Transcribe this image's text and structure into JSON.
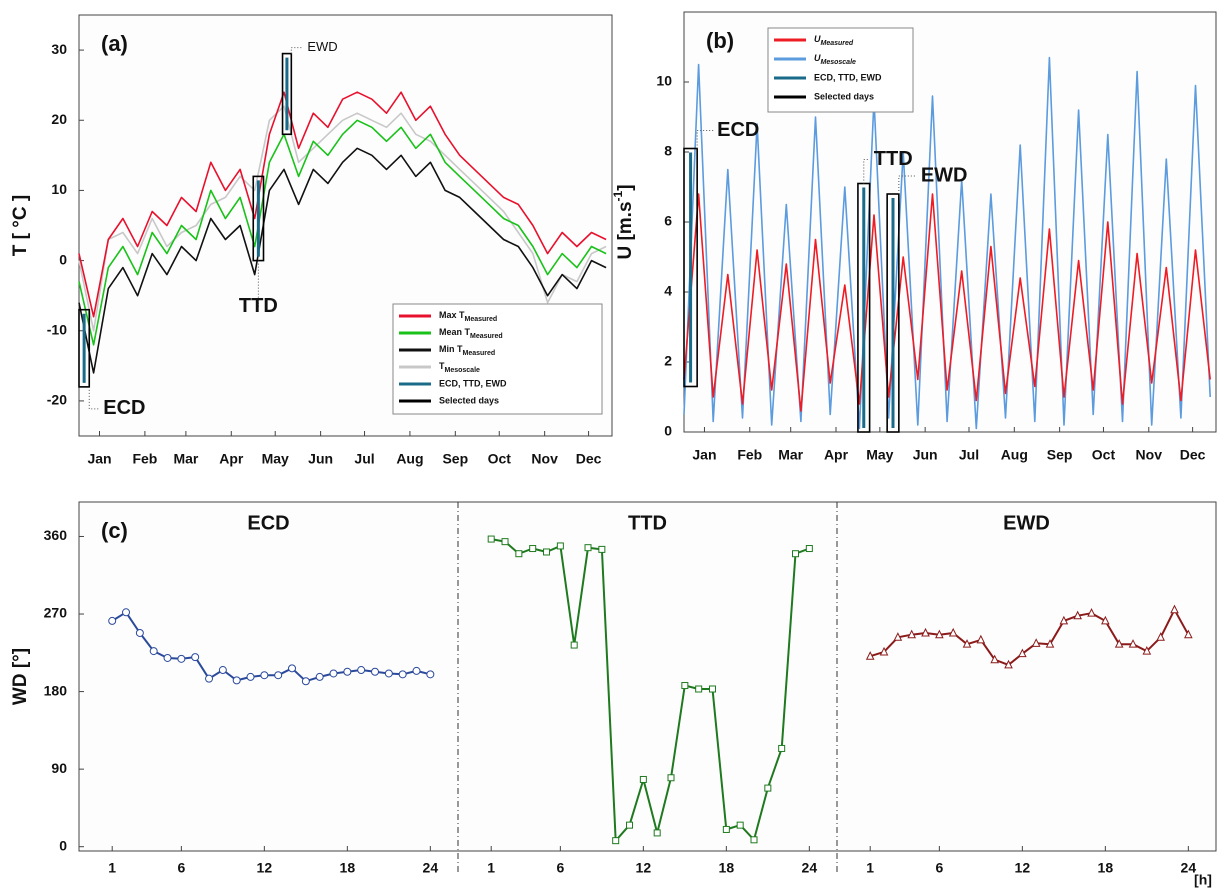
{
  "chart_data": [
    {
      "type": "line",
      "panel_label": "(a)",
      "ylabel": "T [ °C ]",
      "legend": "lower right",
      "x": [
        1,
        11,
        21,
        31,
        41,
        51,
        61,
        71,
        81,
        91,
        101,
        111,
        121,
        131,
        141,
        151,
        161,
        171,
        181,
        191,
        201,
        211,
        221,
        231,
        241,
        251,
        261,
        271,
        281,
        291,
        301,
        311,
        321,
        331,
        341,
        351,
        361
      ],
      "xlim": [
        1,
        365
      ],
      "xticks": [
        {
          "value": 15,
          "label": "Jan"
        },
        {
          "value": 46,
          "label": "Feb"
        },
        {
          "value": 74,
          "label": "Mar"
        },
        {
          "value": 105,
          "label": "Apr"
        },
        {
          "value": 135,
          "label": "May"
        },
        {
          "value": 166,
          "label": "Jun"
        },
        {
          "value": 196,
          "label": "Jul"
        },
        {
          "value": 227,
          "label": "Aug"
        },
        {
          "value": 258,
          "label": "Sep"
        },
        {
          "value": 288,
          "label": "Oct"
        },
        {
          "value": 319,
          "label": "Nov"
        },
        {
          "value": 349,
          "label": "Dec"
        }
      ],
      "ylim": [
        -25,
        35
      ],
      "yticks": [
        -20,
        -10,
        0,
        10,
        20,
        30
      ],
      "series": [
        {
          "name": "Max T",
          "name_sub": "Measured",
          "color": "#e8112d",
          "values": [
            1,
            -8,
            3,
            6,
            2,
            7,
            5,
            9,
            7,
            14,
            10,
            13,
            6,
            18,
            24,
            16,
            21,
            19,
            23,
            24,
            23,
            21,
            24,
            20,
            22,
            18,
            15,
            13,
            11,
            9,
            8,
            5,
            1,
            4,
            2,
            4,
            3
          ]
        },
        {
          "name": "Mean T",
          "name_sub": "Measured",
          "color": "#19c219",
          "values": [
            -3,
            -12,
            -1,
            2,
            -2,
            4,
            1,
            5,
            3,
            10,
            6,
            9,
            2,
            14,
            18,
            12,
            17,
            15,
            18,
            20,
            19,
            17,
            19,
            16,
            18,
            14,
            12,
            10,
            8,
            6,
            5,
            2,
            -2,
            1,
            -1,
            2,
            1
          ]
        },
        {
          "name": "Min T",
          "name_sub": "Measured",
          "color": "#111111",
          "values": [
            -6,
            -16,
            -4,
            -1,
            -5,
            1,
            -2,
            2,
            0,
            6,
            3,
            5,
            -2,
            10,
            13,
            8,
            13,
            11,
            14,
            16,
            15,
            13,
            15,
            12,
            14,
            10,
            9,
            7,
            5,
            3,
            2,
            -1,
            -5,
            -2,
            -4,
            0,
            -1
          ]
        },
        {
          "name": "T",
          "name_sub": "Mesoscale",
          "color": "#c8c8c8",
          "values": [
            0,
            -10,
            3,
            4,
            1,
            6,
            2,
            4,
            5,
            8,
            9,
            12,
            10,
            20,
            22,
            14,
            16,
            18,
            20,
            21,
            20,
            19,
            21,
            18,
            17,
            15,
            13,
            11,
            9,
            7,
            4,
            1,
            -6,
            -2,
            -3,
            1,
            2
          ]
        }
      ],
      "events": [
        {
          "label": "ECD",
          "x": [
            1,
            8
          ],
          "y": [
            -18,
            -7
          ]
        },
        {
          "label": "TTD",
          "x": [
            120,
            127
          ],
          "y": [
            0,
            12
          ]
        },
        {
          "label": "EWD",
          "x": [
            140,
            146
          ],
          "y": [
            18,
            29.5
          ]
        }
      ],
      "event_color": "#1a6b8a",
      "extra_legend": [
        {
          "name": "ECD, TTD, EWD",
          "color": "#1a6b8a"
        },
        {
          "name": "Selected days",
          "color": "#000000"
        }
      ]
    },
    {
      "type": "line",
      "panel_label": "(b)",
      "ylabel": "U  [m.s",
      "ylabel_sup": "-1",
      "ylabel_end": "]",
      "legend": "upper left",
      "x": [
        1,
        11,
        21,
        31,
        41,
        51,
        61,
        71,
        81,
        91,
        101,
        111,
        121,
        131,
        141,
        151,
        161,
        171,
        181,
        191,
        201,
        211,
        221,
        231,
        241,
        251,
        261,
        271,
        281,
        291,
        301,
        311,
        321,
        331,
        341,
        351,
        361
      ],
      "xlim": [
        1,
        365
      ],
      "xticks": [
        {
          "value": 15,
          "label": "Jan"
        },
        {
          "value": 46,
          "label": "Feb"
        },
        {
          "value": 74,
          "label": "Mar"
        },
        {
          "value": 105,
          "label": "Apr"
        },
        {
          "value": 135,
          "label": "May"
        },
        {
          "value": 166,
          "label": "Jun"
        },
        {
          "value": 196,
          "label": "Jul"
        },
        {
          "value": 227,
          "label": "Aug"
        },
        {
          "value": 258,
          "label": "Sep"
        },
        {
          "value": 288,
          "label": "Oct"
        },
        {
          "value": 319,
          "label": "Nov"
        },
        {
          "value": 349,
          "label": "Dec"
        }
      ],
      "ylim": [
        0,
        12
      ],
      "yticks": [
        0,
        2,
        4,
        6,
        8,
        10
      ],
      "series": [
        {
          "name": "U",
          "name_sub": "Measured",
          "color": "#ee1c25",
          "values": [
            1.5,
            6.8,
            1,
            4.5,
            0.8,
            5.2,
            1.2,
            4.8,
            0.6,
            5.5,
            1.4,
            4.2,
            0.8,
            6.2,
            1,
            5,
            1.5,
            6.8,
            1.2,
            4.6,
            0.9,
            5.3,
            1.1,
            4.4,
            1.3,
            5.8,
            1,
            4.9,
            1.2,
            6,
            0.8,
            5.1,
            1.4,
            4.7,
            0.9,
            5.2,
            1.5
          ]
        },
        {
          "name": "U",
          "name_sub": "Mesoscale",
          "color": "#5b9bde",
          "values": [
            0.5,
            10.5,
            0.3,
            7.5,
            0.4,
            8.8,
            0.2,
            6.5,
            0.3,
            9,
            0.5,
            7,
            0.1,
            9.5,
            0.4,
            8,
            0.2,
            9.6,
            0.3,
            7.2,
            0.1,
            6.8,
            0.4,
            8.2,
            0.3,
            10.7,
            0.2,
            9.2,
            0.5,
            8.5,
            0.3,
            10.3,
            0.2,
            7.8,
            0.4,
            9.9,
            1
          ]
        }
      ],
      "events": [
        {
          "label": "ECD",
          "x": [
            1,
            10
          ],
          "y": [
            1.3,
            8.1
          ]
        },
        {
          "label": "TTD",
          "x": [
            120,
            128
          ],
          "y": [
            0,
            7.1
          ]
        },
        {
          "label": "EWD",
          "x": [
            140,
            148
          ],
          "y": [
            0,
            6.8
          ]
        }
      ],
      "event_color": "#1a6b8a",
      "extra_legend": [
        {
          "name": "ECD, TTD, EWD",
          "color": "#1a6b8a"
        },
        {
          "name": "Selected days",
          "color": "#000000"
        }
      ]
    },
    {
      "type": "line",
      "facet": true,
      "panel_label": "(c)",
      "ylabel": "WD [°]",
      "xlabel": "[h]",
      "x": [
        1,
        2,
        3,
        4,
        5,
        6,
        7,
        8,
        9,
        10,
        11,
        12,
        13,
        14,
        15,
        16,
        17,
        18,
        19,
        20,
        21,
        22,
        23,
        24
      ],
      "xlim": [
        -1.4,
        26
      ],
      "xticks": [
        1,
        6,
        12,
        18,
        24
      ],
      "ylim": [
        -5,
        400
      ],
      "yticks": [
        0,
        90,
        180,
        270,
        360
      ],
      "series": [
        {
          "name": "ECD",
          "color": "#2b4a9c",
          "marker": "circle",
          "values": [
            262,
            272,
            248,
            227,
            219,
            218,
            220,
            195,
            205,
            193,
            197,
            199,
            199,
            207,
            192,
            197,
            201,
            203,
            205,
            203,
            201,
            200,
            204,
            200
          ]
        },
        {
          "name": "TTD",
          "color": "#1f7a1f",
          "marker": "square",
          "values": [
            357,
            354,
            340,
            346,
            342,
            349,
            234,
            347,
            345,
            7,
            25,
            78,
            16,
            80,
            187,
            183,
            183,
            20,
            25,
            8,
            68,
            114,
            340,
            346
          ]
        },
        {
          "name": "EWD",
          "color": "#8b1a1a",
          "marker": "triangle",
          "values": [
            221,
            226,
            243,
            246,
            248,
            246,
            248,
            235,
            240,
            217,
            211,
            224,
            236,
            235,
            262,
            268,
            271,
            262,
            235,
            235,
            227,
            243,
            275,
            246
          ]
        }
      ],
      "title_color": "#1a6b8a"
    }
  ]
}
